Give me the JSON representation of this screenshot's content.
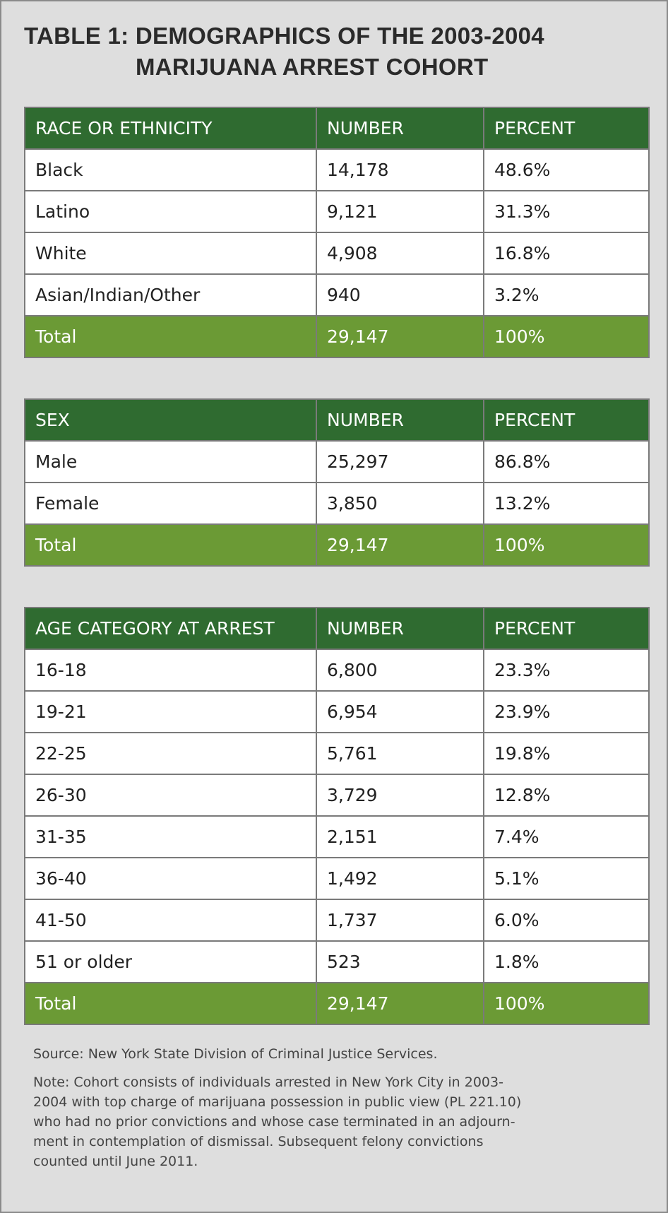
{
  "title": [
    "TABLE 1: DEMOGRAPHICS OF THE 2003-2004",
    "MARIJUANA ARREST COHORT"
  ],
  "tables": [
    {
      "header": [
        "RACE OR ETHNICITY",
        "NUMBER",
        "PERCENT"
      ],
      "rows": [
        [
          "Black",
          "14,178",
          "48.6%"
        ],
        [
          "Latino",
          "9,121",
          "31.3%"
        ],
        [
          "White",
          "4,908",
          "16.8%"
        ],
        [
          "Asian/Indian/Other",
          "940",
          "3.2%"
        ]
      ],
      "total": [
        "Total",
        "29,147",
        "100%"
      ]
    },
    {
      "header": [
        "SEX",
        "NUMBER",
        "PERCENT"
      ],
      "rows": [
        [
          "Male",
          "25,297",
          "86.8%"
        ],
        [
          "Female",
          "3,850",
          "13.2%"
        ]
      ],
      "total": [
        "Total",
        "29,147",
        "100%"
      ]
    },
    {
      "header": [
        "AGE CATEGORY AT ARREST",
        "NUMBER",
        "PERCENT"
      ],
      "rows": [
        [
          "16-18",
          "6,800",
          "23.3%"
        ],
        [
          "19-21",
          "6,954",
          "23.9%"
        ],
        [
          "22-25",
          "5,761",
          "19.8%"
        ],
        [
          "26-30",
          "3,729",
          "12.8%"
        ],
        [
          "31-35",
          "2,151",
          "7.4%"
        ],
        [
          "36-40",
          "1,492",
          "5.1%"
        ],
        [
          "41-50",
          "1,737",
          "6.0%"
        ],
        [
          "51 or older",
          "523",
          "1.8%"
        ]
      ],
      "total": [
        "Total",
        "29,147",
        "100%"
      ]
    }
  ],
  "source": "Source: New York State Division of Criminal Justice Services.",
  "note": [
    "Note: Cohort consists of individuals arrested in New York City in 2003-",
    "2004 with top charge of marijuana possession in public view (PL 221.10)",
    "who had no prior convictions and whose case terminated in an adjourn-",
    "ment in contemplation of dismissal. Subsequent felony convictions",
    "counted until June 2011."
  ]
}
